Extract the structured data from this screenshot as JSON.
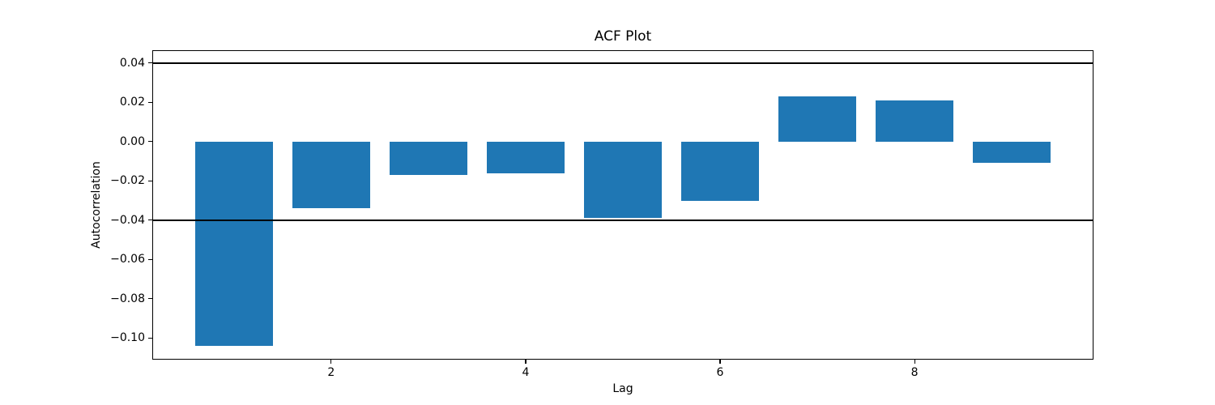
{
  "figure": {
    "title": "ACF Plot",
    "xlabel": "Lag",
    "ylabel": "Autocorrelation"
  },
  "chart_data": {
    "type": "bar",
    "title": "ACF Plot",
    "xlabel": "Lag",
    "ylabel": "Autocorrelation",
    "x": [
      1,
      2,
      3,
      4,
      5,
      6,
      7,
      8,
      9
    ],
    "values": [
      -0.104,
      -0.034,
      -0.017,
      -0.016,
      -0.039,
      -0.03,
      0.023,
      0.021,
      -0.011
    ],
    "bar_width": 0.8,
    "bar_color": "#1f77b4",
    "significance_lines": [
      0.04,
      -0.04
    ],
    "significance_line_color": "#000000",
    "xlim": [
      0.16,
      9.84
    ],
    "ylim": [
      -0.111,
      0.0465
    ],
    "xticks": {
      "values": [
        2,
        4,
        6,
        8
      ],
      "labels": [
        "2",
        "4",
        "6",
        "8"
      ]
    },
    "yticks": {
      "values": [
        0.04,
        0.02,
        0.0,
        -0.02,
        -0.04,
        -0.06,
        -0.08,
        -0.1
      ],
      "labels": [
        "0.04",
        "0.02",
        "0.00",
        "−0.02",
        "−0.04",
        "−0.06",
        "−0.08",
        "−0.10"
      ]
    },
    "grid": false,
    "legend": "none",
    "axes_color": "#000000",
    "background_color": "#ffffff"
  }
}
